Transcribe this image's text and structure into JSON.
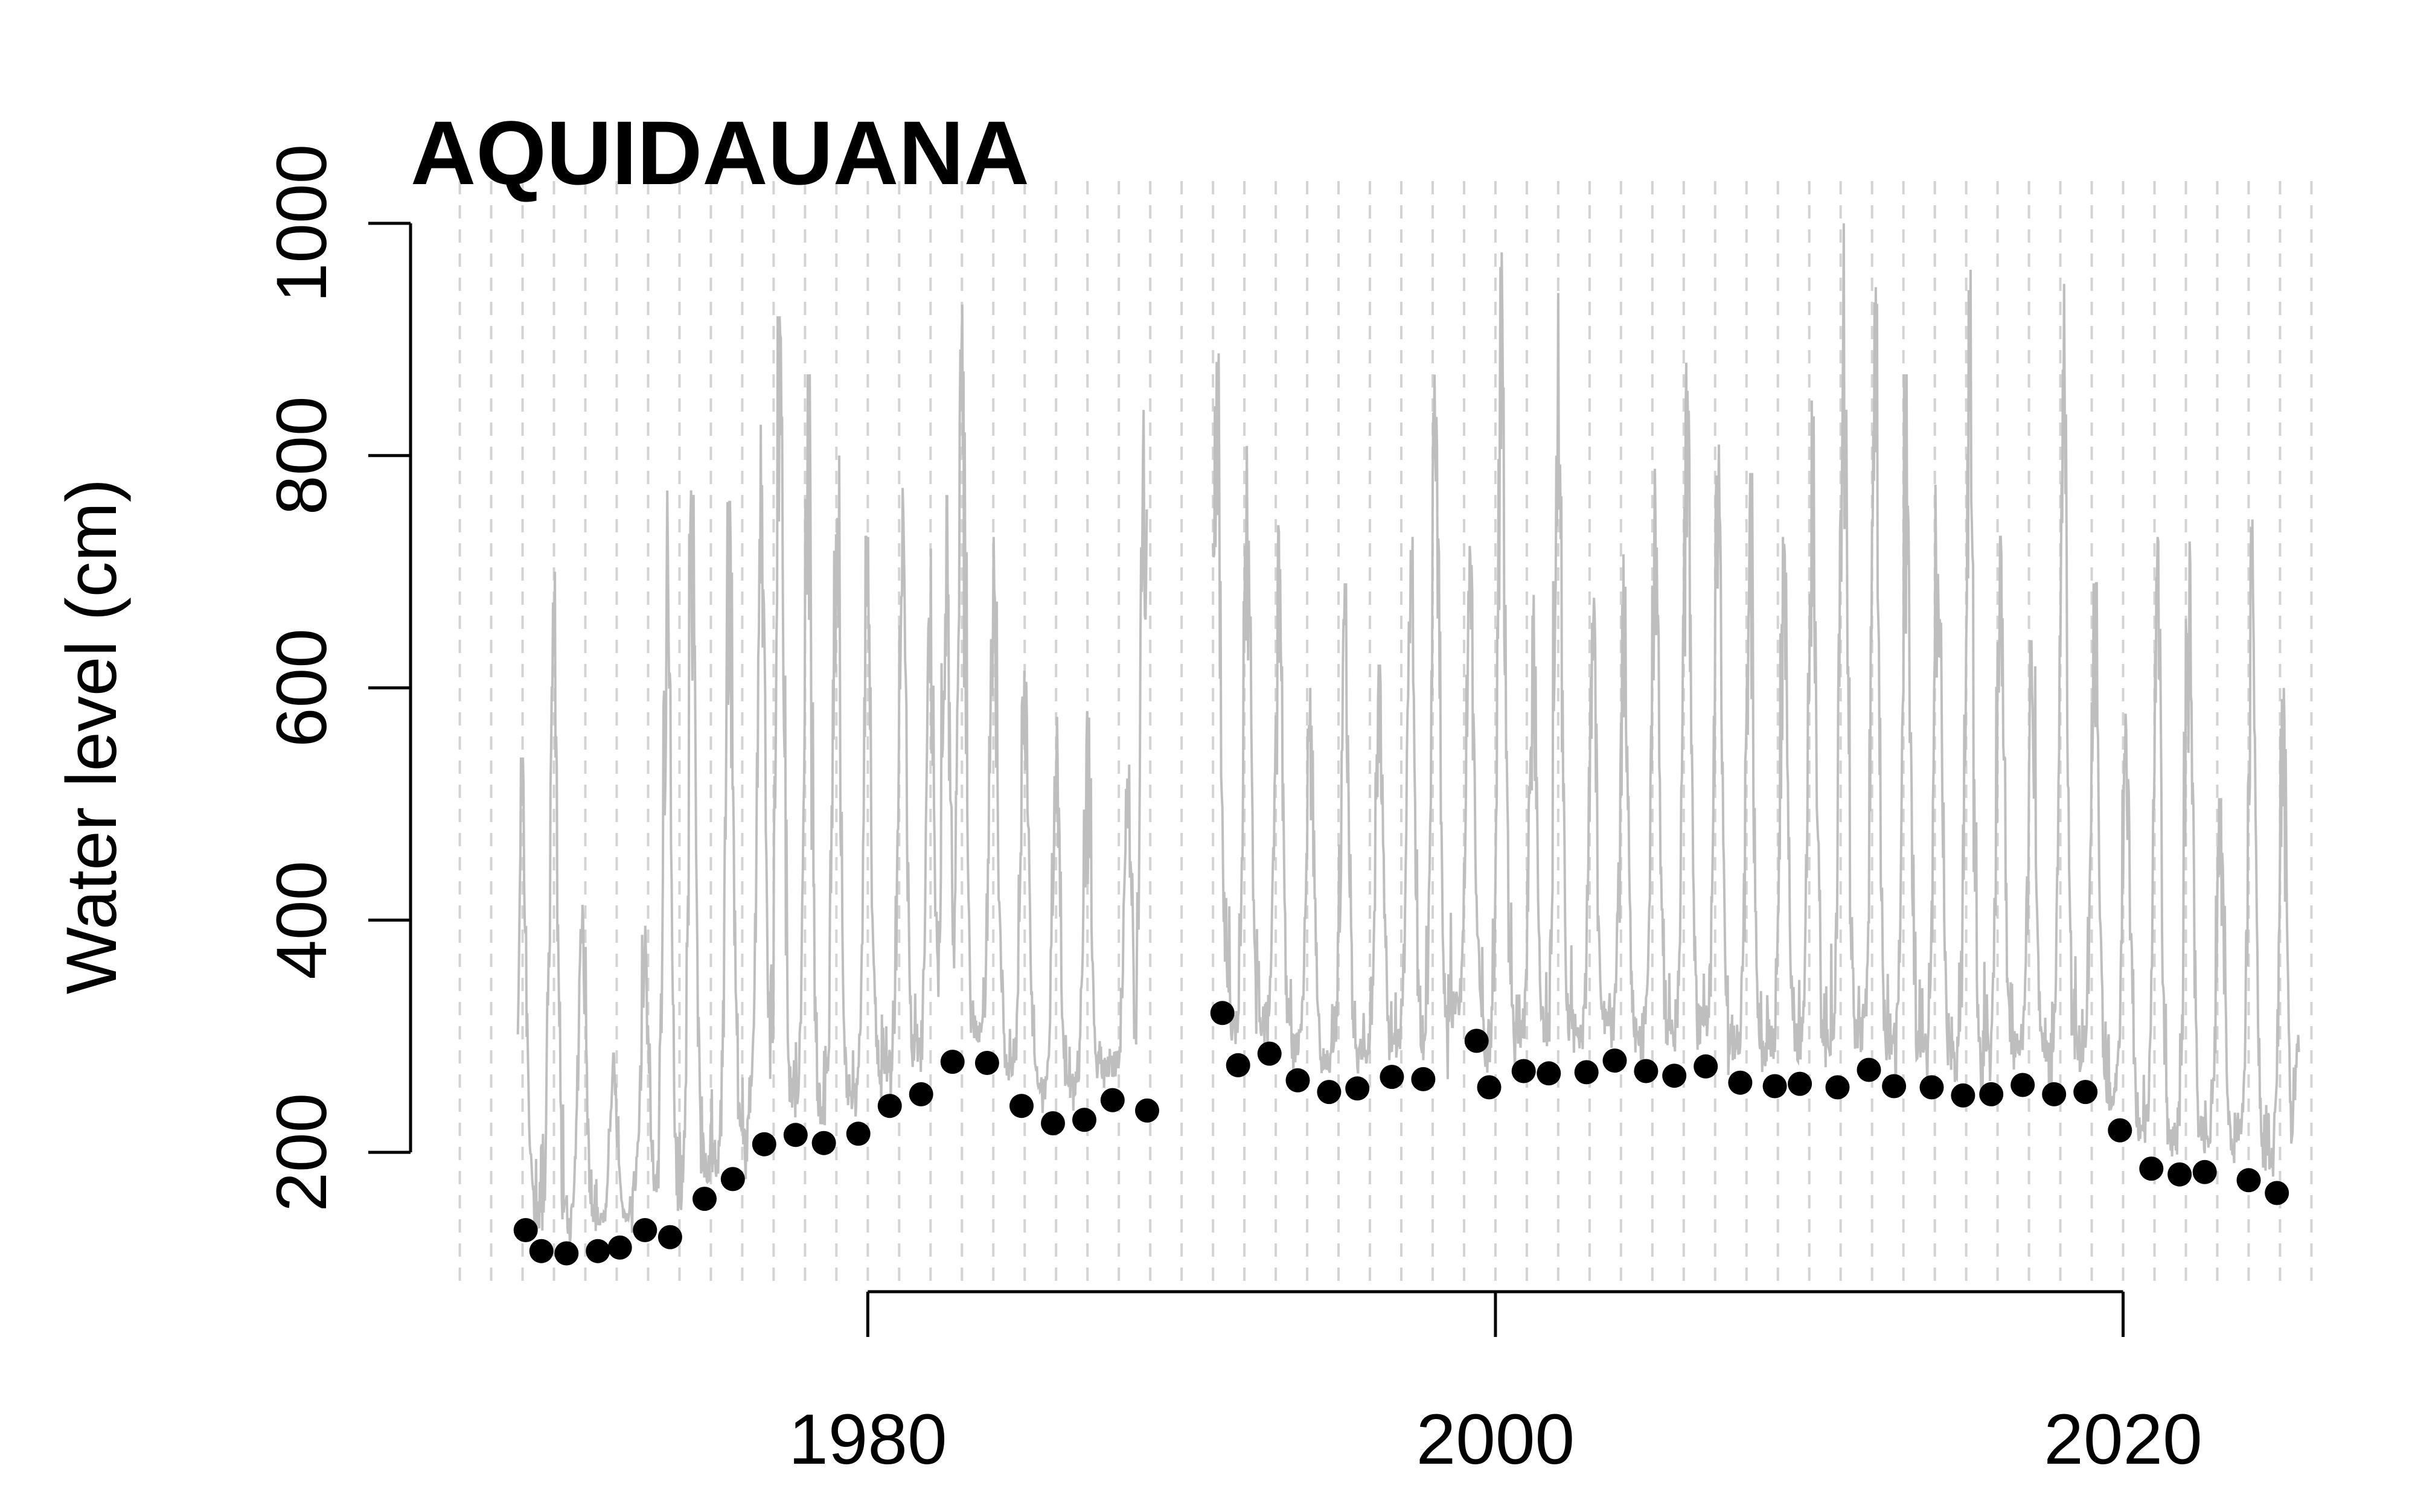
{
  "chart_data": {
    "type": "line",
    "title": "AQUIDAUANA",
    "xlabel": "",
    "ylabel": "Water level (cm)",
    "xlim": [
      1966.2,
      2026.8
    ],
    "ylim": [
      80,
      1000
    ],
    "x_ticks": [
      1980,
      2000,
      2020
    ],
    "x_tick_labels": [
      "1980",
      "2000",
      "2020"
    ],
    "y_ticks": [
      200,
      400,
      600,
      800,
      1000
    ],
    "y_tick_labels": [
      "200",
      "400",
      "600",
      "800",
      "1000"
    ],
    "grid": "vertical dashed lines at every year",
    "grid_years": [
      1967,
      1968,
      1969,
      1970,
      1971,
      1972,
      1973,
      1974,
      1975,
      1976,
      1977,
      1978,
      1979,
      1980,
      1981,
      1982,
      1983,
      1984,
      1985,
      1986,
      1987,
      1988,
      1989,
      1990,
      1991,
      1992,
      1993,
      1994,
      1995,
      1996,
      1997,
      1998,
      1999,
      2000,
      2001,
      2002,
      2003,
      2004,
      2005,
      2006,
      2007,
      2008,
      2009,
      2010,
      2011,
      2012,
      2013,
      2014,
      2015,
      2016,
      2017,
      2018,
      2019,
      2020,
      2021,
      2022,
      2023,
      2024,
      2025,
      2026
    ],
    "legend": "none",
    "series": [
      {
        "role": "daily water level",
        "color": "#bebebe",
        "style": "line",
        "segments": [
          {
            "start": 1968.85,
            "end": 1988.9
          },
          {
            "start": 1991.0,
            "end": 2025.6
          }
        ],
        "annual_peaks": [
          {
            "x": 1969.0,
            "y": 540
          },
          {
            "x": 1970.0,
            "y": 700
          },
          {
            "x": 1970.9,
            "y": 430
          },
          {
            "x": 1971.9,
            "y": 285
          },
          {
            "x": 1972.9,
            "y": 400
          },
          {
            "x": 1973.6,
            "y": 780
          },
          {
            "x": 1974.4,
            "y": 770
          },
          {
            "x": 1975.6,
            "y": 760
          },
          {
            "x": 1976.6,
            "y": 830
          },
          {
            "x": 1977.2,
            "y": 920
          },
          {
            "x": 1978.1,
            "y": 870
          },
          {
            "x": 1979.0,
            "y": 800
          },
          {
            "x": 1980.0,
            "y": 730
          },
          {
            "x": 1981.1,
            "y": 775
          },
          {
            "x": 1982.0,
            "y": 720
          },
          {
            "x": 1982.5,
            "y": 765
          },
          {
            "x": 1983.0,
            "y": 930
          },
          {
            "x": 1984.0,
            "y": 730
          },
          {
            "x": 1985.0,
            "y": 645
          },
          {
            "x": 1986.0,
            "y": 575
          },
          {
            "x": 1987.0,
            "y": 580
          },
          {
            "x": 1988.3,
            "y": 555
          },
          {
            "x": 1988.8,
            "y": 840
          },
          {
            "x": 1991.1,
            "y": 895
          },
          {
            "x": 1992.1,
            "y": 820
          },
          {
            "x": 1993.1,
            "y": 740
          },
          {
            "x": 1994.1,
            "y": 600
          },
          {
            "x": 1995.2,
            "y": 690
          },
          {
            "x": 1996.3,
            "y": 620
          },
          {
            "x": 1997.3,
            "y": 730
          },
          {
            "x": 1998.1,
            "y": 990
          },
          {
            "x": 1999.2,
            "y": 740
          },
          {
            "x": 2000.2,
            "y": 975
          },
          {
            "x": 2001.2,
            "y": 680
          },
          {
            "x": 2002.0,
            "y": 940
          },
          {
            "x": 2003.1,
            "y": 700
          },
          {
            "x": 2004.1,
            "y": 715
          },
          {
            "x": 2005.1,
            "y": 820
          },
          {
            "x": 2006.1,
            "y": 880
          },
          {
            "x": 2007.1,
            "y": 825
          },
          {
            "x": 2008.1,
            "y": 785
          },
          {
            "x": 2009.2,
            "y": 730
          },
          {
            "x": 2010.1,
            "y": 865
          },
          {
            "x": 2011.1,
            "y": 1000
          },
          {
            "x": 2012.1,
            "y": 945
          },
          {
            "x": 2013.1,
            "y": 870
          },
          {
            "x": 2014.1,
            "y": 775
          },
          {
            "x": 2015.1,
            "y": 960
          },
          {
            "x": 2016.1,
            "y": 730
          },
          {
            "x": 2017.1,
            "y": 640
          },
          {
            "x": 2018.1,
            "y": 970
          },
          {
            "x": 2019.1,
            "y": 690
          },
          {
            "x": 2020.1,
            "y": 600
          },
          {
            "x": 2021.1,
            "y": 730
          },
          {
            "x": 2022.1,
            "y": 790
          },
          {
            "x": 2023.1,
            "y": 505
          },
          {
            "x": 2024.1,
            "y": 745
          },
          {
            "x": 2025.1,
            "y": 600
          },
          {
            "x": 2025.6,
            "y": 320
          }
        ]
      },
      {
        "role": "annual minimum",
        "color": "#000000",
        "style": "points",
        "points": [
          {
            "x": 1969.1,
            "y": 133
          },
          {
            "x": 1969.6,
            "y": 115
          },
          {
            "x": 1970.4,
            "y": 113
          },
          {
            "x": 1971.4,
            "y": 115
          },
          {
            "x": 1972.1,
            "y": 118
          },
          {
            "x": 1972.9,
            "y": 133
          },
          {
            "x": 1973.7,
            "y": 127
          },
          {
            "x": 1974.8,
            "y": 160
          },
          {
            "x": 1975.7,
            "y": 177
          },
          {
            "x": 1976.7,
            "y": 207
          },
          {
            "x": 1977.7,
            "y": 215
          },
          {
            "x": 1978.6,
            "y": 208
          },
          {
            "x": 1979.7,
            "y": 216
          },
          {
            "x": 1980.7,
            "y": 240
          },
          {
            "x": 1981.7,
            "y": 250
          },
          {
            "x": 1982.7,
            "y": 278
          },
          {
            "x": 1983.8,
            "y": 277
          },
          {
            "x": 1984.9,
            "y": 240
          },
          {
            "x": 1985.9,
            "y": 225
          },
          {
            "x": 1986.9,
            "y": 228
          },
          {
            "x": 1987.8,
            "y": 245
          },
          {
            "x": 1988.9,
            "y": 236
          },
          {
            "x": 1991.3,
            "y": 320
          },
          {
            "x": 1991.8,
            "y": 275
          },
          {
            "x": 1992.8,
            "y": 285
          },
          {
            "x": 1993.7,
            "y": 262
          },
          {
            "x": 1994.7,
            "y": 252
          },
          {
            "x": 1995.6,
            "y": 255
          },
          {
            "x": 1996.7,
            "y": 265
          },
          {
            "x": 1997.7,
            "y": 263
          },
          {
            "x": 1999.4,
            "y": 296
          },
          {
            "x": 1999.8,
            "y": 256
          },
          {
            "x": 2000.9,
            "y": 270
          },
          {
            "x": 2001.7,
            "y": 268
          },
          {
            "x": 2002.9,
            "y": 269
          },
          {
            "x": 2003.8,
            "y": 279
          },
          {
            "x": 2004.8,
            "y": 270
          },
          {
            "x": 2005.7,
            "y": 266
          },
          {
            "x": 2006.7,
            "y": 274
          },
          {
            "x": 2007.8,
            "y": 260
          },
          {
            "x": 2008.9,
            "y": 257
          },
          {
            "x": 2009.7,
            "y": 259
          },
          {
            "x": 2010.9,
            "y": 256
          },
          {
            "x": 2011.9,
            "y": 271
          },
          {
            "x": 2012.7,
            "y": 257
          },
          {
            "x": 2013.9,
            "y": 256
          },
          {
            "x": 2014.9,
            "y": 249
          },
          {
            "x": 2015.8,
            "y": 250
          },
          {
            "x": 2016.8,
            "y": 258
          },
          {
            "x": 2017.8,
            "y": 250
          },
          {
            "x": 2018.8,
            "y": 252
          },
          {
            "x": 2019.9,
            "y": 219
          },
          {
            "x": 2020.9,
            "y": 186
          },
          {
            "x": 2021.8,
            "y": 181
          },
          {
            "x": 2022.6,
            "y": 183
          },
          {
            "x": 2024.0,
            "y": 176
          },
          {
            "x": 2024.9,
            "y": 165
          }
        ]
      }
    ]
  }
}
